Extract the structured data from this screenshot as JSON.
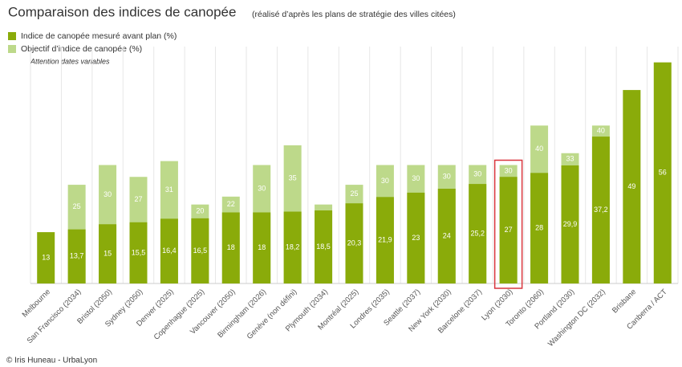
{
  "chart_data": {
    "type": "bar",
    "title": "Comparaison des indices de canopée",
    "subtitle": "(réalisé d’après les plans de stratégie des villes citées)",
    "annotation": "Attention dates variables",
    "source": "© Iris Huneau - UrbaLyon",
    "categories": [
      "Melbourne",
      "San Francisco (2034)",
      "Bristol (2050)",
      "Sydney (2050)",
      "Denver (2025)",
      "Copenhague (2025)",
      "Vancouver (2050)",
      "Birmingham (2026)",
      "Genève (non défini)",
      "Plymouth (2034)",
      "Montréal (2025)",
      "Londres (2035)",
      "Seattle (2037)",
      "New York (2030)",
      "Barcelone (2037)",
      "Lyon (2030)",
      "Toronto (2060)",
      "Portland (2030)",
      "Washington DC (2032)",
      "Brisbane",
      "Canberra / ACT"
    ],
    "series": [
      {
        "name": "Indice de canopée mesuré avant plan (%)",
        "color": "#8aab0a",
        "values": [
          13,
          13.7,
          15,
          15.5,
          16.4,
          16.5,
          18,
          18,
          18.2,
          18.5,
          20.3,
          21.9,
          23,
          24,
          25.2,
          27,
          28,
          29.9,
          37.2,
          49,
          56
        ],
        "value_labels": [
          "13",
          "13,7",
          "15",
          "15,5",
          "16,4",
          "16,5",
          "18",
          "18",
          "18,2",
          "18,5",
          "20,3",
          "21,9",
          "23",
          "24",
          "25,2",
          "27",
          "28",
          "29,9",
          "37,2",
          "49",
          "56"
        ]
      },
      {
        "name": "Objectif d’indice de canopée (%)",
        "color": "#bdd98a",
        "values": [
          null,
          25,
          30,
          27,
          31,
          20,
          22,
          30,
          35,
          20,
          25,
          30,
          30,
          30,
          30,
          30,
          40,
          33,
          40,
          null,
          null
        ],
        "value_labels": [
          null,
          "25",
          "30",
          "27",
          "31",
          "20",
          "22",
          "30",
          "35",
          null,
          "25",
          "30",
          "30",
          "30",
          "30",
          "30",
          "40",
          "33",
          "40",
          null,
          null
        ]
      }
    ],
    "ylim": [
      0,
      60
    ],
    "grid": "x",
    "highlight_category": "Lyon (2030)",
    "highlight_color": "#d9363e"
  }
}
